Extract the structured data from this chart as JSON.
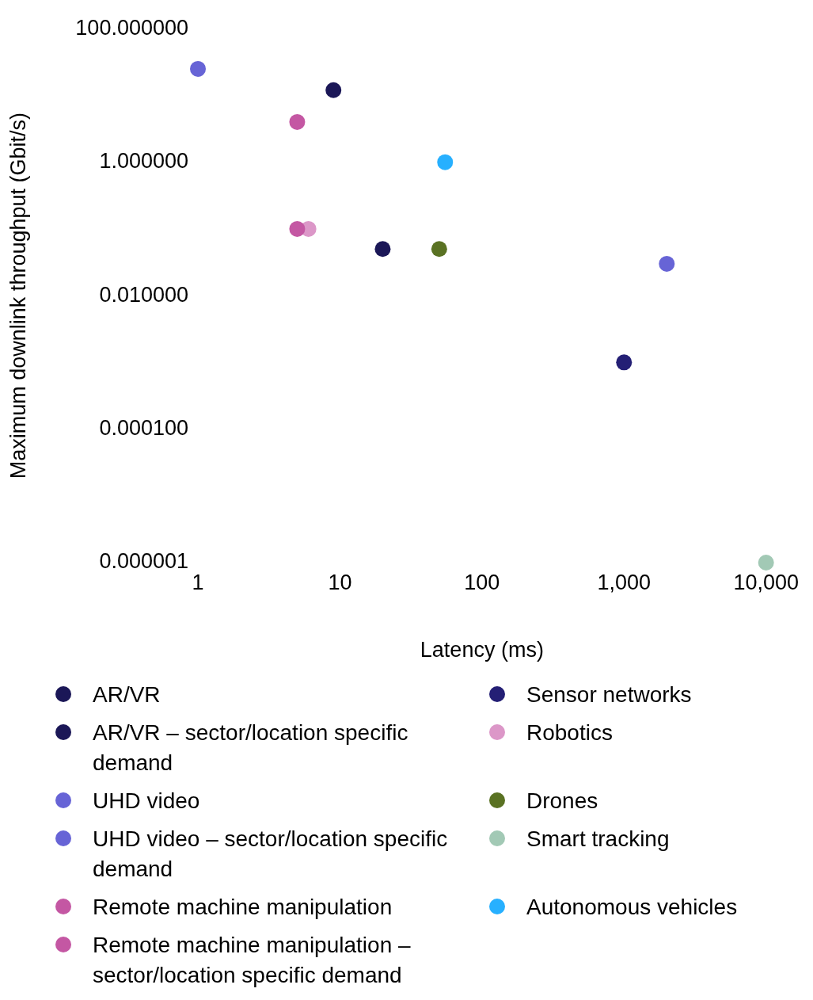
{
  "chart_data": {
    "type": "scatter",
    "xlabel": "Latency (ms)",
    "ylabel": "Maximum downlink throughput (Gbit/s)",
    "log": "xy",
    "marker": "circle",
    "legend": "bottom",
    "grid": false,
    "xlim": [
      1,
      10000
    ],
    "xticks": [
      1,
      10,
      100,
      {
        "value": 1000,
        "label": "1,000"
      },
      {
        "value": 10000,
        "label": "10,000"
      }
    ],
    "ylim": [
      1e-06,
      100
    ],
    "yticks": [
      {
        "value": 100,
        "label": "100.000000"
      },
      {
        "value": 1,
        "label": "1.000000"
      },
      {
        "value": 0.01,
        "label": "0.010000"
      },
      {
        "value": 0.0001,
        "label": "0.000100"
      },
      {
        "value": 1e-06,
        "label": "0.000001"
      }
    ],
    "series": [
      {
        "name": "AR/VR",
        "color": "#1b1757",
        "x": [
          20
        ],
        "values": [
          0.05
        ]
      },
      {
        "name": "AR/VR – sector/location specific demand",
        "color": "#1b1757",
        "x": [
          9
        ],
        "values": [
          12
        ]
      },
      {
        "name": "UHD video",
        "color": "#6764d6",
        "x": [
          2000
        ],
        "values": [
          0.03
        ]
      },
      {
        "name": "UHD video – sector/location specific demand",
        "color": "#6764d6",
        "x": [
          1
        ],
        "values": [
          25
        ]
      },
      {
        "name": "Remote machine manipulation",
        "color": "#c457a3",
        "x": [
          5
        ],
        "values": [
          0.1
        ]
      },
      {
        "name": "Remote machine manipulation – sector/location specific demand",
        "color": "#c457a3",
        "x": [
          5
        ],
        "values": [
          4
        ]
      },
      {
        "name": "Sensor networks",
        "color": "#241f75",
        "x": [
          1000
        ],
        "values": [
          0.001
        ]
      },
      {
        "name": "Robotics",
        "color": "#dc97c8",
        "x": [
          6
        ],
        "values": [
          0.1
        ]
      },
      {
        "name": "Drones",
        "color": "#5a7223",
        "x": [
          50
        ],
        "values": [
          0.05
        ]
      },
      {
        "name": "Smart tracking",
        "color": "#a2c9b5",
        "x": [
          10000
        ],
        "values": [
          1e-06
        ]
      },
      {
        "name": "Autonomous vehicles",
        "color": "#27b0ff",
        "x": [
          55
        ],
        "values": [
          1
        ]
      }
    ]
  }
}
